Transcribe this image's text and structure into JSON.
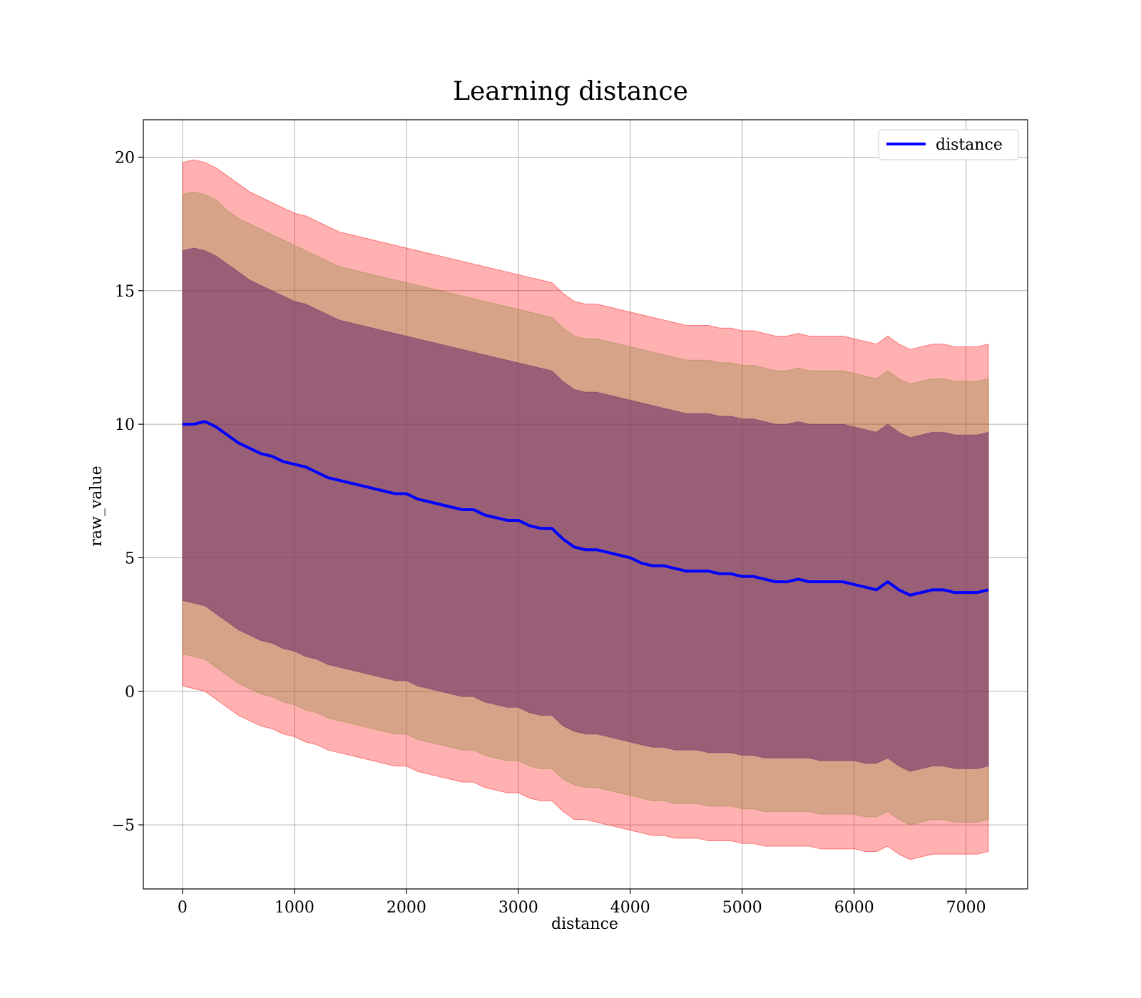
{
  "chart_data": {
    "type": "line",
    "title": "Learning distance",
    "xlabel": "distance",
    "ylabel": "raw_value",
    "xlim": [
      -350,
      7550
    ],
    "ylim": [
      -7.4,
      21.4
    ],
    "xticks": [
      0,
      1000,
      2000,
      3000,
      4000,
      5000,
      6000,
      7000
    ],
    "xtick_labels": [
      "0",
      "1000",
      "2000",
      "3000",
      "4000",
      "5000",
      "6000",
      "7000"
    ],
    "yticks": [
      -5,
      0,
      5,
      10,
      15,
      20
    ],
    "ytick_labels": [
      "−5",
      "0",
      "5",
      "10",
      "15",
      "20"
    ],
    "grid": true,
    "legend_position": "top-right",
    "colors": {
      "line": "#0000ff",
      "band_outer": "#ff0000",
      "band_middle": "#8b8b3c",
      "band_inner": "#6a2a6a",
      "grid": "#b0b0b0"
    },
    "series": [
      {
        "name": "distance",
        "x": [
          0,
          100,
          200,
          300,
          400,
          500,
          600,
          700,
          800,
          900,
          1000,
          1100,
          1200,
          1300,
          1400,
          1500,
          1600,
          1700,
          1800,
          1900,
          2000,
          2100,
          2200,
          2300,
          2400,
          2500,
          2600,
          2700,
          2800,
          2900,
          3000,
          3100,
          3200,
          3300,
          3400,
          3500,
          3600,
          3700,
          3800,
          3900,
          4000,
          4100,
          4200,
          4300,
          4400,
          4500,
          4600,
          4700,
          4800,
          4900,
          5000,
          5100,
          5200,
          5300,
          5400,
          5500,
          5600,
          5700,
          5800,
          5900,
          6000,
          6100,
          6200,
          6300,
          6400,
          6500,
          6600,
          6700,
          6800,
          6900,
          7000,
          7100,
          7200
        ],
        "y": [
          10.0,
          10.0,
          10.1,
          9.9,
          9.6,
          9.3,
          9.1,
          8.9,
          8.8,
          8.6,
          8.5,
          8.4,
          8.2,
          8.0,
          7.9,
          7.8,
          7.7,
          7.6,
          7.5,
          7.4,
          7.4,
          7.2,
          7.1,
          7.0,
          6.9,
          6.8,
          6.8,
          6.6,
          6.5,
          6.4,
          6.4,
          6.2,
          6.1,
          6.1,
          5.7,
          5.4,
          5.3,
          5.3,
          5.2,
          5.1,
          5.0,
          4.8,
          4.7,
          4.7,
          4.6,
          4.5,
          4.5,
          4.5,
          4.4,
          4.4,
          4.3,
          4.3,
          4.2,
          4.1,
          4.1,
          4.2,
          4.1,
          4.1,
          4.1,
          4.1,
          4.0,
          3.9,
          3.8,
          4.1,
          3.8,
          3.6,
          3.7,
          3.8,
          3.8,
          3.7,
          3.7,
          3.7,
          3.8
        ]
      }
    ],
    "bands": [
      {
        "name": "outer",
        "lower": [
          0.2,
          0.1,
          0.0,
          -0.3,
          -0.6,
          -0.9,
          -1.1,
          -1.3,
          -1.4,
          -1.6,
          -1.7,
          -1.9,
          -2.0,
          -2.2,
          -2.3,
          -2.4,
          -2.5,
          -2.6,
          -2.7,
          -2.8,
          -2.8,
          -3.0,
          -3.1,
          -3.2,
          -3.3,
          -3.4,
          -3.4,
          -3.6,
          -3.7,
          -3.8,
          -3.8,
          -4.0,
          -4.1,
          -4.1,
          -4.5,
          -4.8,
          -4.8,
          -4.9,
          -5.0,
          -5.1,
          -5.2,
          -5.3,
          -5.4,
          -5.4,
          -5.5,
          -5.5,
          -5.5,
          -5.6,
          -5.6,
          -5.6,
          -5.7,
          -5.7,
          -5.8,
          -5.8,
          -5.8,
          -5.8,
          -5.8,
          -5.9,
          -5.9,
          -5.9,
          -5.9,
          -6.0,
          -6.0,
          -5.8,
          -6.1,
          -6.3,
          -6.2,
          -6.1,
          -6.1,
          -6.1,
          -6.1,
          -6.1,
          -6.0
        ],
        "upper": [
          19.8,
          19.9,
          19.8,
          19.6,
          19.3,
          19.0,
          18.7,
          18.5,
          18.3,
          18.1,
          17.9,
          17.8,
          17.6,
          17.4,
          17.2,
          17.1,
          17.0,
          16.9,
          16.8,
          16.7,
          16.6,
          16.5,
          16.4,
          16.3,
          16.2,
          16.1,
          16.0,
          15.9,
          15.8,
          15.7,
          15.6,
          15.5,
          15.4,
          15.3,
          14.9,
          14.6,
          14.5,
          14.5,
          14.4,
          14.3,
          14.2,
          14.1,
          14.0,
          13.9,
          13.8,
          13.7,
          13.7,
          13.7,
          13.6,
          13.6,
          13.5,
          13.5,
          13.4,
          13.3,
          13.3,
          13.4,
          13.3,
          13.3,
          13.3,
          13.3,
          13.2,
          13.1,
          13.0,
          13.3,
          13.0,
          12.8,
          12.9,
          13.0,
          13.0,
          12.9,
          12.9,
          12.9,
          13.0
        ]
      },
      {
        "name": "middle",
        "lower": [
          1.4,
          1.3,
          1.2,
          0.9,
          0.6,
          0.3,
          0.1,
          -0.1,
          -0.2,
          -0.4,
          -0.5,
          -0.7,
          -0.8,
          -1.0,
          -1.1,
          -1.2,
          -1.3,
          -1.4,
          -1.5,
          -1.6,
          -1.6,
          -1.8,
          -1.9,
          -2.0,
          -2.1,
          -2.2,
          -2.2,
          -2.4,
          -2.5,
          -2.6,
          -2.6,
          -2.8,
          -2.9,
          -2.9,
          -3.3,
          -3.5,
          -3.6,
          -3.6,
          -3.7,
          -3.8,
          -3.9,
          -4.0,
          -4.1,
          -4.1,
          -4.2,
          -4.2,
          -4.2,
          -4.3,
          -4.3,
          -4.3,
          -4.4,
          -4.4,
          -4.5,
          -4.5,
          -4.5,
          -4.5,
          -4.5,
          -4.6,
          -4.6,
          -4.6,
          -4.6,
          -4.7,
          -4.7,
          -4.5,
          -4.8,
          -5.0,
          -4.9,
          -4.8,
          -4.8,
          -4.9,
          -4.9,
          -4.9,
          -4.8
        ],
        "upper": [
          18.6,
          18.7,
          18.6,
          18.4,
          18.0,
          17.7,
          17.5,
          17.3,
          17.1,
          16.9,
          16.7,
          16.5,
          16.3,
          16.1,
          15.9,
          15.8,
          15.7,
          15.6,
          15.5,
          15.4,
          15.3,
          15.2,
          15.1,
          15.0,
          14.9,
          14.8,
          14.7,
          14.6,
          14.5,
          14.4,
          14.3,
          14.2,
          14.1,
          14.0,
          13.6,
          13.3,
          13.2,
          13.2,
          13.1,
          13.0,
          12.9,
          12.8,
          12.7,
          12.6,
          12.5,
          12.4,
          12.4,
          12.4,
          12.3,
          12.3,
          12.2,
          12.2,
          12.1,
          12.0,
          12.0,
          12.1,
          12.0,
          12.0,
          12.0,
          12.0,
          11.9,
          11.8,
          11.7,
          12.0,
          11.7,
          11.5,
          11.6,
          11.7,
          11.7,
          11.6,
          11.6,
          11.6,
          11.7
        ]
      },
      {
        "name": "inner",
        "lower": [
          3.4,
          3.3,
          3.2,
          2.9,
          2.6,
          2.3,
          2.1,
          1.9,
          1.8,
          1.6,
          1.5,
          1.3,
          1.2,
          1.0,
          0.9,
          0.8,
          0.7,
          0.6,
          0.5,
          0.4,
          0.4,
          0.2,
          0.1,
          0.0,
          -0.1,
          -0.2,
          -0.2,
          -0.4,
          -0.5,
          -0.6,
          -0.6,
          -0.8,
          -0.9,
          -0.9,
          -1.3,
          -1.5,
          -1.6,
          -1.6,
          -1.7,
          -1.8,
          -1.9,
          -2.0,
          -2.1,
          -2.1,
          -2.2,
          -2.2,
          -2.2,
          -2.3,
          -2.3,
          -2.3,
          -2.4,
          -2.4,
          -2.5,
          -2.5,
          -2.5,
          -2.5,
          -2.5,
          -2.6,
          -2.6,
          -2.6,
          -2.6,
          -2.7,
          -2.7,
          -2.5,
          -2.8,
          -3.0,
          -2.9,
          -2.8,
          -2.8,
          -2.9,
          -2.9,
          -2.9,
          -2.8
        ],
        "upper": [
          16.5,
          16.6,
          16.5,
          16.3,
          16.0,
          15.7,
          15.4,
          15.2,
          15.0,
          14.8,
          14.6,
          14.5,
          14.3,
          14.1,
          13.9,
          13.8,
          13.7,
          13.6,
          13.5,
          13.4,
          13.3,
          13.2,
          13.1,
          13.0,
          12.9,
          12.8,
          12.7,
          12.6,
          12.5,
          12.4,
          12.3,
          12.2,
          12.1,
          12.0,
          11.6,
          11.3,
          11.2,
          11.2,
          11.1,
          11.0,
          10.9,
          10.8,
          10.7,
          10.6,
          10.5,
          10.4,
          10.4,
          10.4,
          10.3,
          10.3,
          10.2,
          10.2,
          10.1,
          10.0,
          10.0,
          10.1,
          10.0,
          10.0,
          10.0,
          10.0,
          9.9,
          9.8,
          9.7,
          10.0,
          9.7,
          9.5,
          9.6,
          9.7,
          9.7,
          9.6,
          9.6,
          9.6,
          9.7
        ]
      }
    ]
  }
}
